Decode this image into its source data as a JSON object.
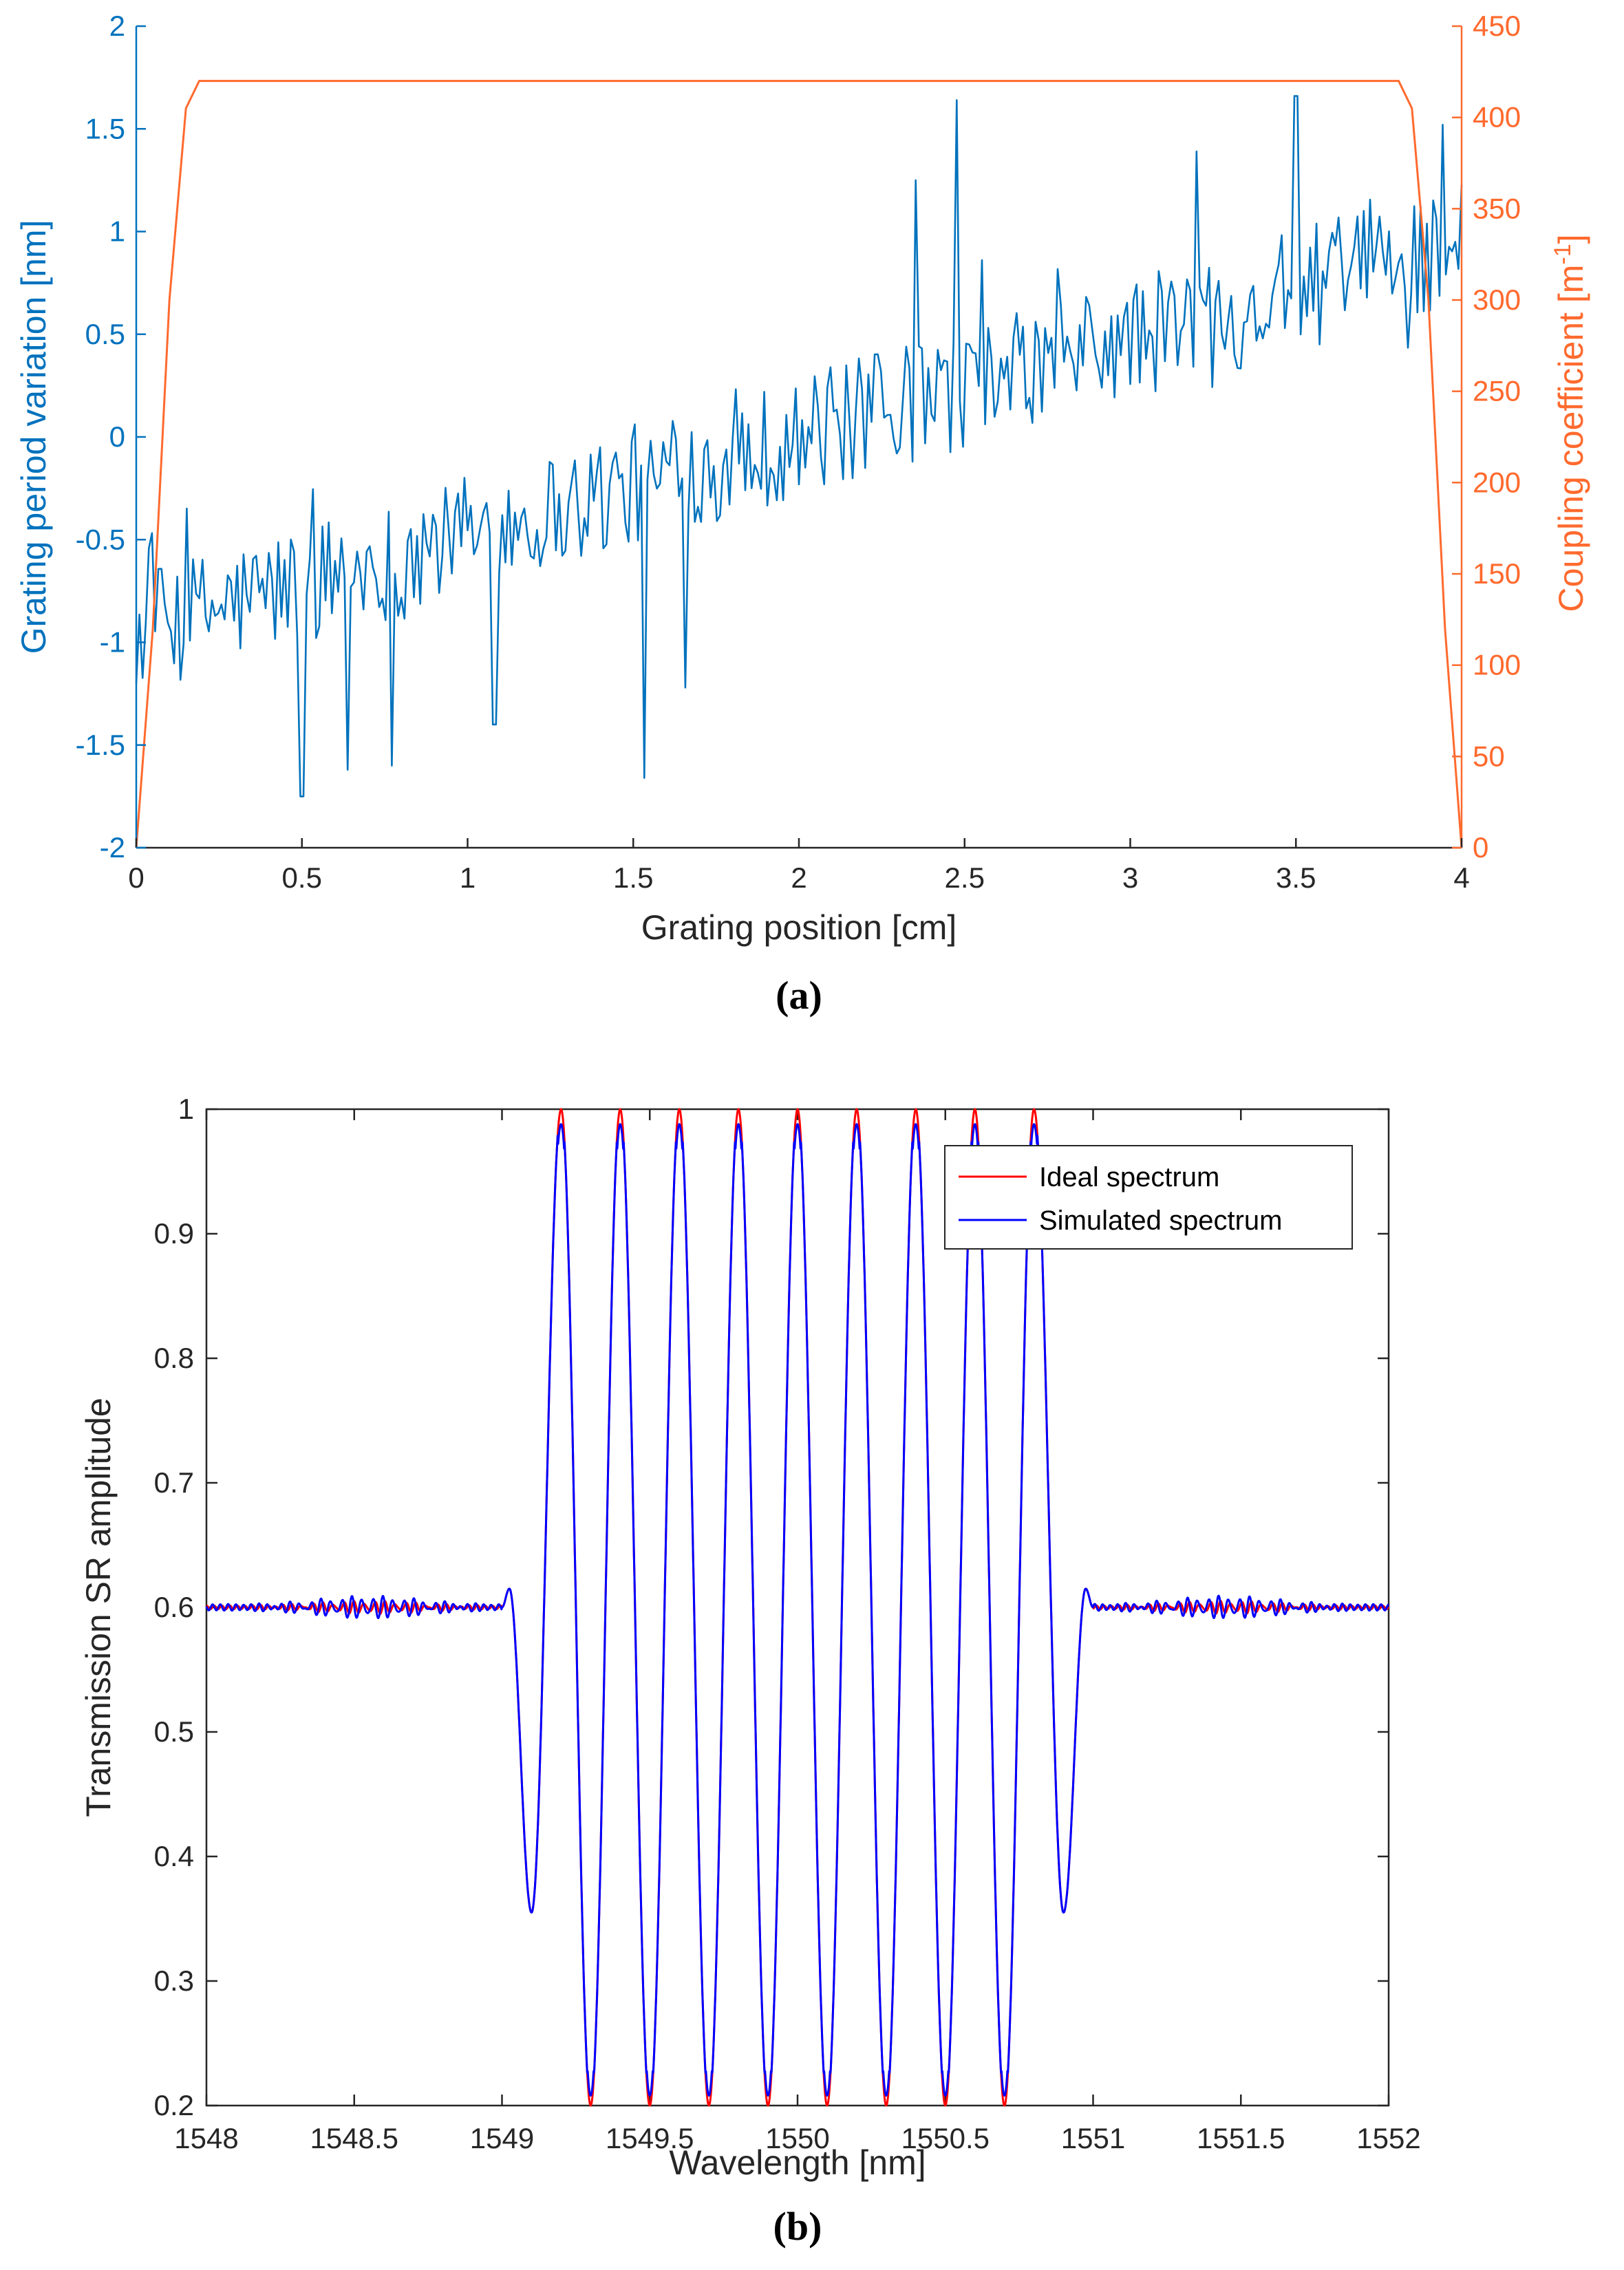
{
  "chart_data": [
    {
      "type": "line",
      "caption": "(a)",
      "xlabel": "Grating position [cm]",
      "ylabel_left": "Grating period variation [nm]",
      "ylabel_right_prefix": "Coupling coefficient [m",
      "ylabel_right_sup": "-1",
      "ylabel_right_suffix": "]",
      "xlim": [
        0,
        4
      ],
      "ylim_left": [
        -2,
        2
      ],
      "ylim_right": [
        0,
        450
      ],
      "xticks": [
        "0",
        "0.5",
        "1",
        "1.5",
        "2",
        "2.5",
        "3",
        "3.5",
        "4"
      ],
      "yticks_left": [
        "-2",
        "-1.5",
        "-1",
        "-0.5",
        "0",
        "0.5",
        "1",
        "1.5",
        "2"
      ],
      "yticks_right": [
        "0",
        "50",
        "100",
        "150",
        "200",
        "250",
        "300",
        "350",
        "400",
        "450"
      ],
      "colors": {
        "left": "#0072BD",
        "right": "#FF6A2E"
      },
      "series": [
        {
          "name": "Grating period variation",
          "axis": "left",
          "trend": {
            "x": [
              0,
              4
            ],
            "y": [
              -0.95,
              0.95
            ]
          },
          "noise_amplitude": 0.3,
          "spikes": [
            {
              "x": 0.5,
              "y": -1.75
            },
            {
              "x": 0.64,
              "y": -1.62
            },
            {
              "x": 0.77,
              "y": -1.6
            },
            {
              "x": 1.08,
              "y": -1.4
            },
            {
              "x": 1.53,
              "y": -1.66
            },
            {
              "x": 1.66,
              "y": -1.22
            },
            {
              "x": 2.35,
              "y": 1.25
            },
            {
              "x": 2.48,
              "y": 1.64
            },
            {
              "x": 3.2,
              "y": 1.39
            },
            {
              "x": 3.5,
              "y": 1.66
            },
            {
              "x": 3.94,
              "y": 1.52
            }
          ]
        },
        {
          "name": "Coupling coefficient",
          "axis": "right",
          "x": [
            0,
            0.05,
            0.1,
            0.15,
            0.19,
            3.81,
            3.85,
            3.9,
            3.95,
            4.0
          ],
          "y": [
            0,
            120,
            300,
            405,
            420,
            420,
            405,
            300,
            120,
            0
          ]
        }
      ]
    },
    {
      "type": "line",
      "caption": "(b)",
      "xlabel": "Wavelength [nm]",
      "ylabel": "Transmission SR amplitude",
      "xlim": [
        1548,
        1552
      ],
      "ylim": [
        0.2,
        1
      ],
      "xticks": [
        "1548",
        "1548.5",
        "1549",
        "1549.5",
        "1550",
        "1550.5",
        "1551",
        "1551.5",
        "1552"
      ],
      "yticks": [
        "0.2",
        "0.3",
        "0.4",
        "0.5",
        "0.6",
        "0.7",
        "0.8",
        "0.9",
        "1"
      ],
      "legend": [
        "Ideal spectrum",
        "Simulated spectrum"
      ],
      "legend_position": "top-right",
      "baseline": 0.6,
      "band": [
        1549.0,
        1551.0
      ],
      "maxima_x": [
        1549.2,
        1549.4,
        1549.6,
        1549.8,
        1550.0,
        1550.2,
        1550.4,
        1550.6,
        1550.8
      ],
      "maxima_y": 1.0,
      "minima_x": [
        1549.1,
        1549.3,
        1549.5,
        1549.7,
        1549.9,
        1550.1,
        1550.3,
        1550.5,
        1550.7,
        1550.9
      ],
      "minima_y": [
        0.355,
        0.2,
        0.2,
        0.2,
        0.2,
        0.2,
        0.2,
        0.2,
        0.2,
        0.355
      ],
      "series": [
        {
          "name": "Ideal spectrum",
          "color": "#FF0000"
        },
        {
          "name": "Simulated spectrum",
          "color": "#0000FF"
        }
      ]
    }
  ]
}
